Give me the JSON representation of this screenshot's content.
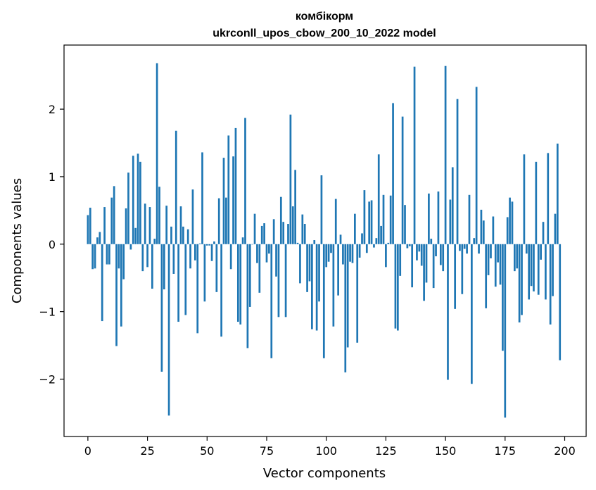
{
  "chart_data": {
    "type": "bar",
    "title": "комбікорм",
    "subtitle": "ukrconll_upos_cbow_200_10_2022 model",
    "xlabel": "Vector components",
    "ylabel": "Components values",
    "xlim": [
      -10,
      209
    ],
    "ylim": [
      -2.85,
      2.95
    ],
    "xticks": [
      0,
      25,
      50,
      75,
      100,
      125,
      150,
      175,
      200
    ],
    "yticks": [
      -2,
      -1,
      0,
      1,
      2
    ],
    "ytick_labels": [
      "−2",
      "−1",
      "0",
      "1",
      "2"
    ],
    "grid": false,
    "bar_color": "#1f77b4",
    "values": [
      0.43,
      0.54,
      -0.37,
      -0.36,
      0.1,
      0.18,
      -1.14,
      0.55,
      -0.3,
      -0.3,
      0.69,
      0.86,
      -1.51,
      -0.36,
      -1.22,
      -0.52,
      0.53,
      1.06,
      -0.08,
      1.31,
      0.24,
      1.34,
      1.22,
      -0.4,
      0.6,
      -0.34,
      0.55,
      -0.66,
      0.08,
      2.68,
      0.85,
      -1.89,
      -0.67,
      0.57,
      -2.54,
      0.26,
      -0.44,
      1.68,
      -1.15,
      0.56,
      0.26,
      -1.05,
      0.22,
      -0.36,
      0.81,
      -0.24,
      -1.32,
      0.01,
      1.36,
      -0.85,
      -0.02,
      -0.02,
      -0.25,
      0.04,
      -0.71,
      0.68,
      -1.37,
      1.28,
      0.69,
      1.61,
      -0.37,
      1.3,
      1.72,
      -1.15,
      -1.19,
      0.1,
      1.87,
      -1.54,
      -0.93,
      0.0,
      0.45,
      -0.28,
      -0.72,
      0.27,
      0.31,
      -0.27,
      -0.14,
      -1.69,
      0.37,
      -0.48,
      -1.08,
      0.7,
      0.33,
      -1.08,
      0.3,
      1.92,
      0.56,
      1.1,
      0.02,
      -0.58,
      0.44,
      0.3,
      -0.71,
      -0.55,
      -1.26,
      0.06,
      -1.28,
      -0.85,
      1.02,
      -1.69,
      -0.34,
      -0.26,
      -0.13,
      -1.22,
      0.67,
      -0.76,
      0.14,
      -0.3,
      -1.9,
      -1.53,
      -0.26,
      -0.28,
      0.45,
      -1.46,
      -0.2,
      0.16,
      0.8,
      -0.13,
      0.63,
      0.65,
      -0.05,
      0.09,
      1.33,
      0.27,
      0.73,
      -0.34,
      0.02,
      0.72,
      2.09,
      -1.25,
      -1.28,
      -0.47,
      1.89,
      0.58,
      -0.06,
      -0.03,
      -0.64,
      2.63,
      -0.24,
      -0.11,
      -0.32,
      -0.84,
      -0.57,
      0.75,
      0.08,
      -0.65,
      -0.18,
      0.78,
      -0.31,
      -0.4,
      2.64,
      -2.01,
      0.66,
      1.14,
      -0.96,
      2.15,
      -0.1,
      -0.74,
      -0.07,
      -0.14,
      0.73,
      -2.07,
      0.09,
      2.33,
      -0.14,
      0.51,
      0.35,
      -0.95,
      -0.46,
      -0.21,
      0.41,
      -0.63,
      -0.27,
      -0.6,
      -1.58,
      -2.57,
      0.4,
      0.69,
      0.63,
      -0.4,
      -0.36,
      -1.16,
      -1.05,
      1.33,
      -0.14,
      -0.82,
      -0.62,
      -0.7,
      1.22,
      -0.75,
      -0.23,
      0.33,
      -0.82,
      1.35,
      -1.19,
      -0.77,
      0.45,
      1.49,
      -1.72
    ]
  }
}
